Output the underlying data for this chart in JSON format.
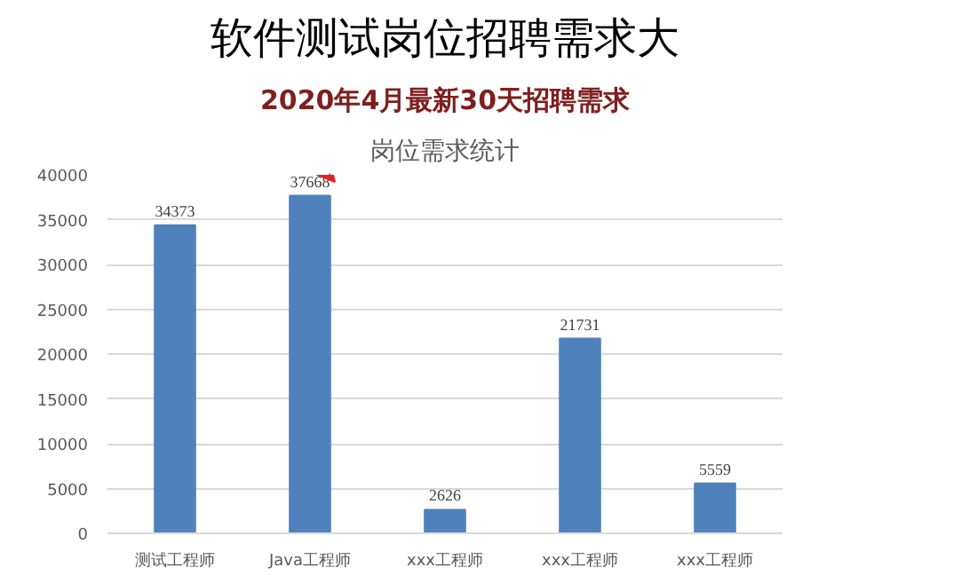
{
  "chart_data": {
    "type": "bar",
    "title": "软件测试岗位招聘需求大",
    "subtitle": "2020年4月最新30天招聘需求",
    "annotations": [
      "岗位需求统计"
    ],
    "categories": [
      "测试工程师",
      "Java工程师",
      "xxx工程师",
      "xxx工程师",
      "xxx工程师"
    ],
    "values": [
      34373,
      37668,
      2626,
      21731,
      5559
    ],
    "color": "#4f81bd",
    "ylim": [
      0,
      40000
    ],
    "yticks": [
      0,
      5000,
      10000,
      15000,
      20000,
      25000,
      30000,
      35000,
      40000
    ],
    "grid": "y",
    "data_labels": true
  }
}
